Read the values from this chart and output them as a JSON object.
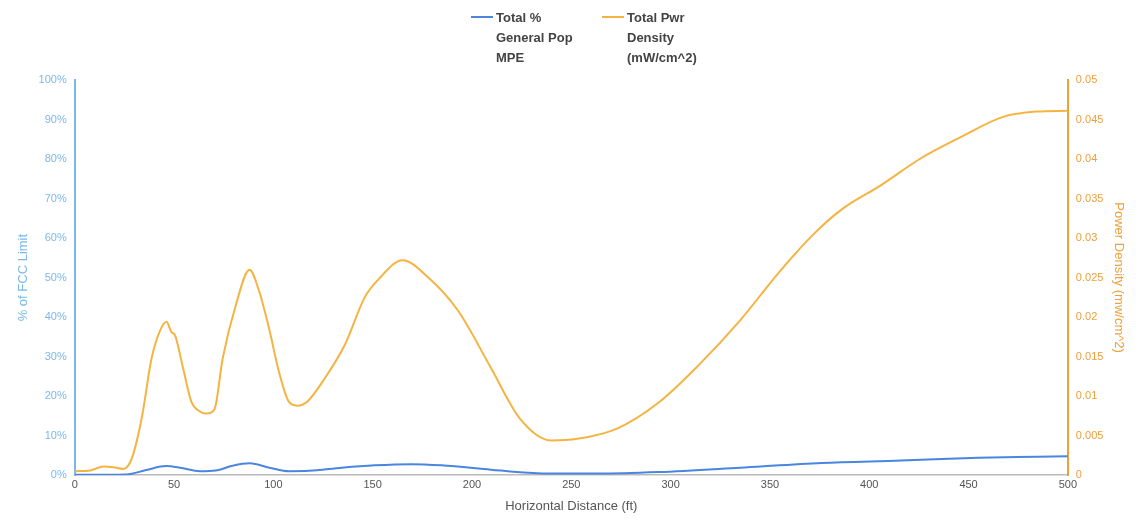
{
  "chart_data": {
    "type": "line",
    "xlabel": "Horizontal Distance (ft)",
    "ylabel": "% of FCC Limit",
    "y2label": "Power Density (mw/cm^2)",
    "xlim": [
      0,
      500
    ],
    "xticks": [
      0,
      50,
      100,
      150,
      200,
      250,
      300,
      350,
      400,
      450,
      500
    ],
    "ylim": [
      0,
      100
    ],
    "yticks": [
      {
        "value": 0,
        "label": "0%"
      },
      {
        "value": 10,
        "label": "10%"
      },
      {
        "value": 20,
        "label": "20%"
      },
      {
        "value": 30,
        "label": "30%"
      },
      {
        "value": 40,
        "label": "40%"
      },
      {
        "value": 50,
        "label": "50%"
      },
      {
        "value": 60,
        "label": "60%"
      },
      {
        "value": 70,
        "label": "70%"
      },
      {
        "value": 80,
        "label": "80%"
      },
      {
        "value": 90,
        "label": "90%"
      },
      {
        "value": 100,
        "label": "100%"
      }
    ],
    "y2lim": [
      0,
      0.05
    ],
    "y2ticks": [
      0,
      0.005,
      0.01,
      0.015,
      0.02,
      0.025,
      0.03,
      0.035,
      0.04,
      0.045,
      0.05
    ],
    "grid": false,
    "legend": "top",
    "marker": "none",
    "line_style": "solid",
    "series": [
      {
        "name": "Total % General Pop MPE",
        "color": "#4a86e0",
        "x": [
          0,
          26,
          36,
          46,
          53,
          63,
          71,
          79.5,
          88,
          98,
          108,
          118,
          134.5,
          151,
          169.5,
          184.5,
          209.5,
          226,
          243,
          263,
          294,
          335,
          376,
          416,
          455,
          500
        ],
        "values": [
          0.1,
          0.2,
          1.3,
          2.3,
          1.9,
          1.0,
          1.2,
          2.4,
          3.0,
          1.9,
          1.0,
          1.1,
          1.9,
          2.5,
          2.8,
          2.5,
          1.4,
          0.7,
          0.4,
          0.4,
          0.8,
          1.9,
          3.1,
          3.7,
          4.4,
          4.8
        ]
      },
      {
        "name": "Total Pwr Density (mW/cm^2)",
        "color": "#f5b342",
        "axis": "y2",
        "x": [
          0,
          7.8,
          14.5,
          19.5,
          24.5,
          28.7,
          33.7,
          38.7,
          42.8,
          46.2,
          48.7,
          50.3,
          54.5,
          58.7,
          62.8,
          66.2,
          70.3,
          74.5,
          81.2,
          88,
          92.8,
          97.8,
          102.8,
          107.8,
          112,
          117,
          126,
          136,
          146,
          153,
          165,
          178,
          193,
          209.5,
          224,
          240,
          253,
          273,
          294,
          314,
          335,
          355,
          372,
          386,
          406,
          426,
          447,
          467,
          484,
          500
        ],
        "values": [
          0.0005,
          0.0006,
          0.0011,
          0.001,
          0.0008,
          0.0021,
          0.0072,
          0.0148,
          0.0182,
          0.0194,
          0.0181,
          0.0178,
          0.0136,
          0.0093,
          0.0081,
          0.0078,
          0.0083,
          0.0148,
          0.0216,
          0.026,
          0.0233,
          0.0186,
          0.0131,
          0.0093,
          0.0088,
          0.0093,
          0.0123,
          0.0165,
          0.0225,
          0.0248,
          0.0272,
          0.025,
          0.0208,
          0.0136,
          0.0072,
          0.0044,
          0.0046,
          0.0059,
          0.0092,
          0.0139,
          0.0196,
          0.0258,
          0.0305,
          0.0336,
          0.0367,
          0.0401,
          0.0429,
          0.0453,
          0.046,
          0.0461
        ]
      }
    ]
  }
}
